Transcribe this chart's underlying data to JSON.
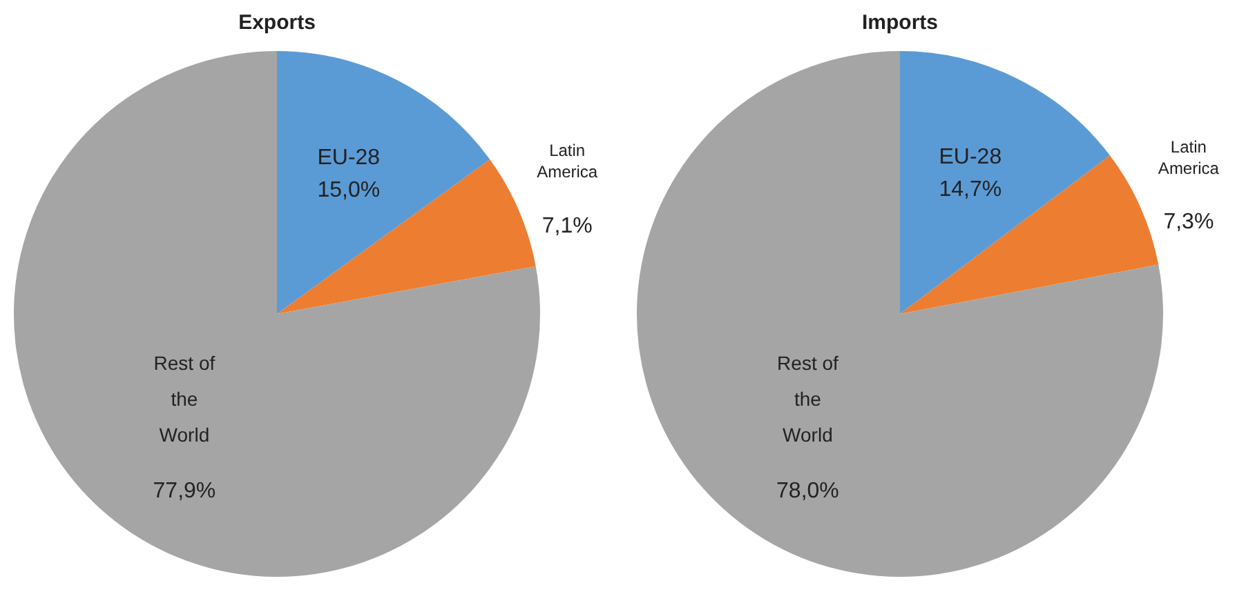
{
  "chart_data": [
    {
      "type": "pie",
      "title": "Exports",
      "categories": [
        "EU-28",
        "Latin America",
        "Rest of the World"
      ],
      "values": [
        15.0,
        7.1,
        77.9
      ],
      "colors": [
        "#5b9bd5",
        "#ed7d31",
        "#a5a5a5"
      ],
      "value_labels": [
        "15,0%",
        "7,1%",
        "77,9%"
      ],
      "legend": false
    },
    {
      "type": "pie",
      "title": "Imports",
      "categories": [
        "EU-28",
        "Latin America",
        "Rest of the World"
      ],
      "values": [
        14.7,
        7.3,
        78.0
      ],
      "colors": [
        "#5b9bd5",
        "#ed7d31",
        "#a5a5a5"
      ],
      "value_labels": [
        "14,7%",
        "7,3%",
        "78,0%"
      ],
      "legend": false
    }
  ]
}
